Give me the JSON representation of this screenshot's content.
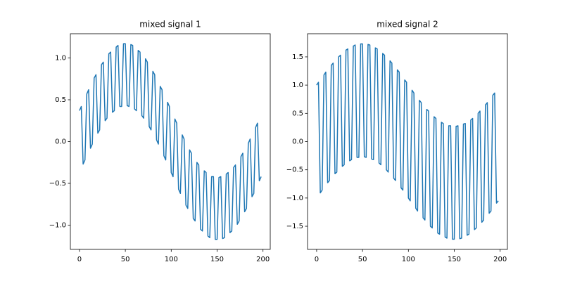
{
  "chart_data": [
    {
      "type": "line",
      "title": "mixed signal 1",
      "x": [
        0,
        2,
        4,
        6,
        8,
        10,
        12,
        14,
        16,
        18,
        20,
        22,
        24,
        26,
        28,
        30,
        32,
        34,
        36,
        38,
        40,
        42,
        44,
        46,
        48,
        50,
        52,
        54,
        56,
        58,
        60,
        62,
        64,
        66,
        68,
        70,
        72,
        74,
        76,
        78,
        80,
        82,
        84,
        86,
        88,
        90,
        92,
        94,
        96,
        98,
        100,
        102,
        104,
        106,
        108,
        110,
        112,
        114,
        116,
        118,
        120,
        122,
        124,
        126,
        128,
        130,
        132,
        134,
        136,
        138,
        140,
        142,
        144,
        146,
        148,
        150,
        152,
        154,
        156,
        158,
        160,
        162,
        164,
        166,
        168,
        170,
        172,
        174,
        176,
        178,
        180,
        182,
        184,
        186,
        188,
        190,
        192,
        194,
        196,
        198
      ],
      "series": [
        {
          "color": "#1f77b4",
          "values": [
            0.37,
            0.42,
            -0.27,
            -0.22,
            0.57,
            0.62,
            -0.08,
            -0.03,
            0.76,
            0.8,
            0.1,
            0.14,
            0.92,
            0.95,
            0.25,
            0.28,
            1.05,
            1.07,
            0.35,
            0.37,
            1.13,
            1.15,
            0.42,
            0.42,
            1.17,
            1.17,
            0.43,
            0.42,
            1.16,
            1.15,
            0.39,
            0.37,
            1.09,
            1.07,
            0.31,
            0.28,
            0.99,
            0.95,
            0.18,
            0.14,
            0.84,
            0.8,
            0.02,
            -0.03,
            0.66,
            0.62,
            -0.17,
            -0.22,
            0.47,
            0.42,
            -0.37,
            -0.42,
            0.27,
            0.22,
            -0.57,
            -0.62,
            0.08,
            0.03,
            -0.76,
            -0.8,
            -0.1,
            -0.14,
            -0.92,
            -0.95,
            -0.25,
            -0.28,
            -1.05,
            -1.07,
            -0.35,
            -0.37,
            -1.13,
            -1.15,
            -0.42,
            -0.42,
            -1.17,
            -1.17,
            -0.43,
            -0.42,
            -1.16,
            -1.15,
            -0.39,
            -0.37,
            -1.09,
            -1.07,
            -0.31,
            -0.28,
            -0.99,
            -0.95,
            -0.18,
            -0.14,
            -0.84,
            -0.8,
            -0.02,
            0.03,
            -0.66,
            -0.62,
            0.17,
            0.22,
            -0.47,
            -0.42
          ]
        }
      ],
      "xlim": [
        -9.9,
        207.9
      ],
      "xticks": [
        0,
        50,
        100,
        150,
        200
      ],
      "ylim": [
        -1.29,
        1.29
      ],
      "yticks": [
        {
          "value": -1.0,
          "label": "−1.0"
        },
        {
          "value": -0.5,
          "label": "−0.5"
        },
        {
          "value": 0.0,
          "label": "0.0"
        },
        {
          "value": 0.5,
          "label": "0.5"
        },
        {
          "value": 1.0,
          "label": "1.0"
        }
      ]
    },
    {
      "type": "line",
      "title": "mixed signal 2",
      "x": [
        0,
        2,
        4,
        6,
        8,
        10,
        12,
        14,
        16,
        18,
        20,
        22,
        24,
        26,
        28,
        30,
        32,
        34,
        36,
        38,
        40,
        42,
        44,
        46,
        48,
        50,
        52,
        54,
        56,
        58,
        60,
        62,
        64,
        66,
        68,
        70,
        72,
        74,
        76,
        78,
        80,
        82,
        84,
        86,
        88,
        90,
        92,
        94,
        96,
        98,
        100,
        102,
        104,
        106,
        108,
        110,
        112,
        114,
        116,
        118,
        120,
        122,
        124,
        126,
        128,
        130,
        132,
        134,
        136,
        138,
        140,
        142,
        144,
        146,
        148,
        150,
        152,
        154,
        156,
        158,
        160,
        162,
        164,
        166,
        168,
        170,
        172,
        174,
        176,
        178,
        180,
        182,
        184,
        186,
        188,
        190,
        192,
        194,
        196,
        198
      ],
      "series": [
        {
          "color": "#1f77b4",
          "values": [
            1.0,
            1.05,
            -0.91,
            -0.86,
            1.18,
            1.23,
            -0.73,
            -0.69,
            1.35,
            1.39,
            -0.57,
            -0.54,
            1.5,
            1.53,
            -0.44,
            -0.41,
            1.62,
            1.64,
            -0.34,
            -0.32,
            1.69,
            1.71,
            -0.28,
            -0.28,
            1.73,
            1.73,
            -0.27,
            -0.28,
            1.72,
            1.71,
            -0.31,
            -0.32,
            1.66,
            1.64,
            -0.38,
            -0.41,
            1.56,
            1.53,
            -0.5,
            -0.54,
            1.43,
            1.39,
            -0.65,
            -0.69,
            1.27,
            1.23,
            -0.82,
            -0.86,
            1.09,
            1.05,
            -1.0,
            -1.05,
            0.91,
            0.86,
            -1.18,
            -1.23,
            0.73,
            0.69,
            -1.35,
            -1.39,
            0.57,
            0.54,
            -1.5,
            -1.53,
            0.44,
            0.41,
            -1.62,
            -1.64,
            0.34,
            0.32,
            -1.69,
            -1.71,
            0.28,
            0.28,
            -1.73,
            -1.73,
            0.27,
            0.28,
            -1.72,
            -1.71,
            0.31,
            0.32,
            -1.66,
            -1.64,
            0.38,
            0.41,
            -1.56,
            -1.53,
            0.5,
            0.54,
            -1.43,
            -1.39,
            0.65,
            0.69,
            -1.27,
            -1.23,
            0.82,
            0.86,
            -1.09,
            -1.05
          ]
        }
      ],
      "xlim": [
        -9.9,
        207.9
      ],
      "xticks": [
        0,
        50,
        100,
        150,
        200
      ],
      "ylim": [
        -1.91,
        1.91
      ],
      "yticks": [
        {
          "value": -1.5,
          "label": "−1.5"
        },
        {
          "value": -1.0,
          "label": "−1.0"
        },
        {
          "value": -0.5,
          "label": "−0.5"
        },
        {
          "value": 0.0,
          "label": "0.0"
        },
        {
          "value": 0.5,
          "label": "0.5"
        },
        {
          "value": 1.0,
          "label": "1.0"
        },
        {
          "value": 1.5,
          "label": "1.5"
        }
      ]
    }
  ]
}
